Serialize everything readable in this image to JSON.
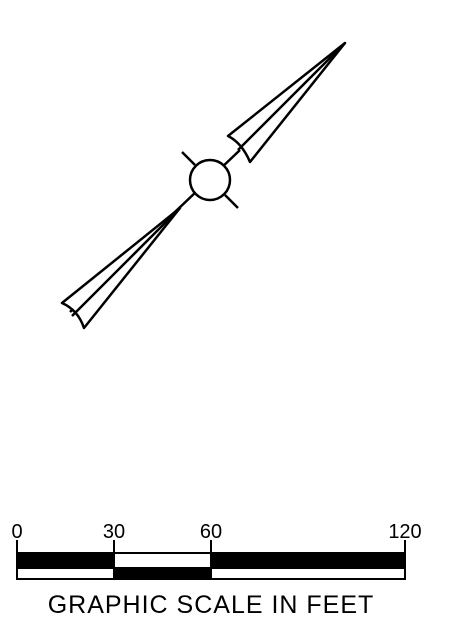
{
  "scale": {
    "ticks": [
      "0",
      "30",
      "60",
      "120"
    ],
    "caption": "GRAPHIC SCALE IN FEET"
  }
}
